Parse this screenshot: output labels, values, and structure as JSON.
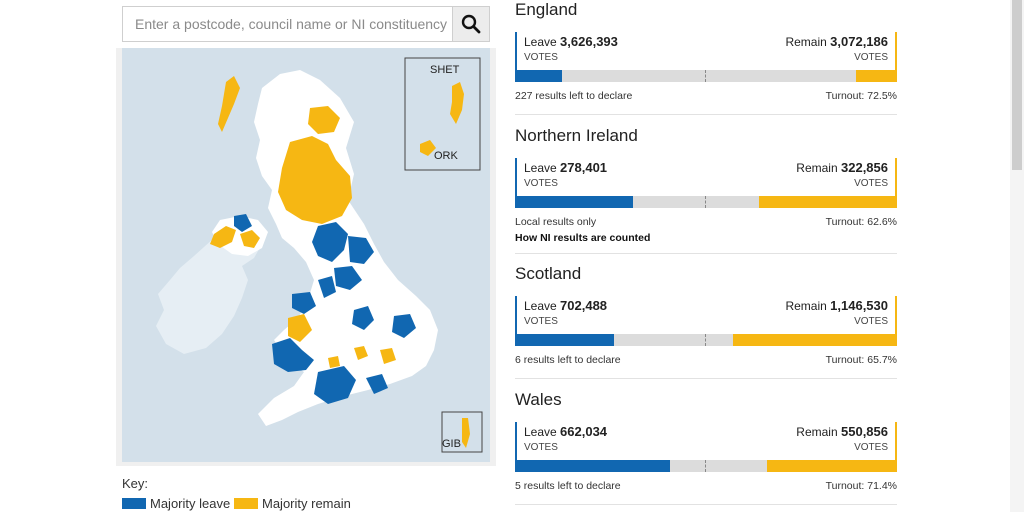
{
  "search": {
    "placeholder": "Enter a postcode, council name or NI constituency"
  },
  "map": {
    "insets": {
      "shetland": "SHET",
      "orkney": "ORK",
      "gibraltar": "GIB"
    },
    "colors": {
      "leave": "#1167b1",
      "remain": "#f6b713",
      "other": "#ffffff",
      "sea": "#d3e0ea",
      "ireland": "#e6eef4"
    }
  },
  "key": {
    "title": "Key:",
    "leave_label": "Majority leave",
    "remain_label": "Majority remain"
  },
  "votes_caption": "VOTES",
  "regions": [
    {
      "name": "England",
      "leave_label": "Leave",
      "leave_votes": "3,626,393",
      "remain_label": "Remain",
      "remain_votes": "3,072,186",
      "leave_share": 0.123,
      "remain_share": 0.108,
      "footer": "227 results left to declare",
      "turnout": "Turnout: 72.5%"
    },
    {
      "name": "Northern Ireland",
      "leave_label": "Leave",
      "leave_votes": "278,401",
      "remain_label": "Remain",
      "remain_votes": "322,856",
      "leave_share": 0.31,
      "remain_share": 0.36,
      "footer": "Local results only",
      "link": "How NI results are counted",
      "turnout": "Turnout: 62.6%"
    },
    {
      "name": "Scotland",
      "leave_label": "Leave",
      "leave_votes": "702,488",
      "remain_label": "Remain",
      "remain_votes": "1,146,530",
      "leave_share": 0.26,
      "remain_share": 0.43,
      "footer": "6 results left to declare",
      "turnout": "Turnout: 65.7%"
    },
    {
      "name": "Wales",
      "leave_label": "Leave",
      "leave_votes": "662,034",
      "remain_label": "Remain",
      "remain_votes": "550,856",
      "leave_share": 0.405,
      "remain_share": 0.34,
      "footer": "5 results left to declare",
      "turnout": "Turnout: 71.4%"
    }
  ]
}
